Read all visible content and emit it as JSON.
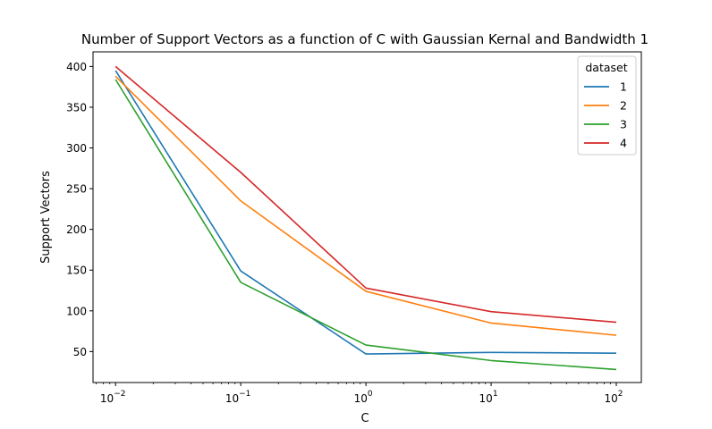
{
  "chart_data": {
    "type": "line",
    "title": "Number of Support Vectors as a function of C with Gaussian Kernal and Bandwidth 1",
    "xlabel": "C",
    "ylabel": "Support Vectors",
    "xscale": "log",
    "x": [
      0.01,
      0.1,
      1,
      10,
      100
    ],
    "x_tick_labels": [
      {
        "base": "10",
        "exp": "−2"
      },
      {
        "base": "10",
        "exp": "−1"
      },
      {
        "base": "10",
        "exp": "0"
      },
      {
        "base": "10",
        "exp": "1"
      },
      {
        "base": "10",
        "exp": "2"
      }
    ],
    "yticks": [
      50,
      100,
      150,
      200,
      250,
      300,
      350,
      400
    ],
    "ylim": [
      12,
      418
    ],
    "xlim_log10": [
      -2.18,
      2.2
    ],
    "grid": false,
    "legend": {
      "title": "dataset",
      "placement": "top-right"
    },
    "series": [
      {
        "name": "1",
        "color": "#1f77b4",
        "values": [
          395,
          149,
          47,
          49,
          48
        ]
      },
      {
        "name": "2",
        "color": "#ff7f0e",
        "values": [
          388,
          235,
          124,
          85,
          70
        ]
      },
      {
        "name": "3",
        "color": "#2ca02c",
        "values": [
          384,
          135,
          58,
          39,
          28
        ]
      },
      {
        "name": "4",
        "color": "#d62728",
        "values": [
          400,
          270,
          128,
          99,
          86
        ]
      }
    ]
  }
}
